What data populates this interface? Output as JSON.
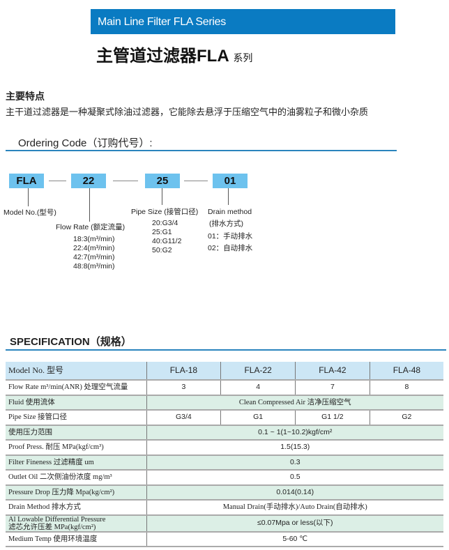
{
  "header": {
    "banner": "Main Line Filter FLA Series",
    "title": "主管道过滤器FLA",
    "title_suffix": "系列",
    "accent": "#0a7bc2"
  },
  "features": {
    "heading": "主要特点",
    "text": "主干道过滤器是一种凝聚式除油过滤器，它能除去悬浮于压缩空气中的油雾粒子和微小杂质"
  },
  "ordering": {
    "heading": "Ordering Code（订购代号）:",
    "codes": [
      "FLA",
      "22",
      "25",
      "01"
    ],
    "model_label": "Model No.(型号)",
    "flow_label": "Flow Rate (额定流量)",
    "flow_values": [
      "18:3(m³/min)",
      "22:4(m³/min)",
      "42:7(m³/min)",
      "48:8(m³/min)"
    ],
    "pipe_label": "Pipe Size (接管口径)",
    "pipe_values": [
      "20:G3/4",
      "25:G1",
      "40:G11/2",
      "50:G2"
    ],
    "drain_label": "Drain method",
    "drain_label_cn": "(排水方式)",
    "drain_values": [
      "01：手动排水",
      "02：自动排水"
    ],
    "box_color": "#6dc2ee"
  },
  "spec": {
    "heading": "SPECIFICATION（规格）",
    "header": [
      "Model No. 型号",
      "FLA-18",
      "FLA-22",
      "FLA-42",
      "FLA-48"
    ],
    "rows": [
      {
        "label": "Flow Rate m³/min(ANR) 处理空气流量",
        "values": [
          "3",
          "4",
          "7",
          "8"
        ]
      },
      {
        "label": "Fluid 使用流体",
        "values": [
          "Clean Compressed Air 洁净压缩空气"
        ]
      },
      {
        "label": "Pipe Size 接管口径",
        "values": [
          "G3/4",
          "G1",
          "G1 1/2",
          "G2"
        ]
      },
      {
        "label": "使用压力范围",
        "values": [
          "0.1 ~ 1(1~10.2)kgf/cm²"
        ]
      },
      {
        "label": "Proof Press.  耐压  MPa(kgf/cm³)",
        "values": [
          "1.5(15.3)"
        ]
      },
      {
        "label": "Filter Fineness 过滤精度    um",
        "values": [
          "0.3"
        ]
      },
      {
        "label": "Outlet Oil  二次侧油份浓度  mg/m³",
        "values": [
          "0.5"
        ]
      },
      {
        "label": "Pressure Drop  压力降   Mpa(kg/cm²)",
        "values": [
          "0.014(0.14)"
        ]
      },
      {
        "label": "Drain Method  排水方式",
        "values": [
          "Manual Drain(手动排水)/Auto Drain(自动排水)"
        ]
      },
      {
        "label": "Al Lowable Differential Pressure",
        "label2": "滤芯允许压差     MPa(kgf/cm²)",
        "values": [
          "≤0.07Mpa or less(以下)"
        ]
      },
      {
        "label": "Medium  Temp  使用环境温度",
        "values": [
          "5-60 ℃"
        ]
      }
    ]
  }
}
